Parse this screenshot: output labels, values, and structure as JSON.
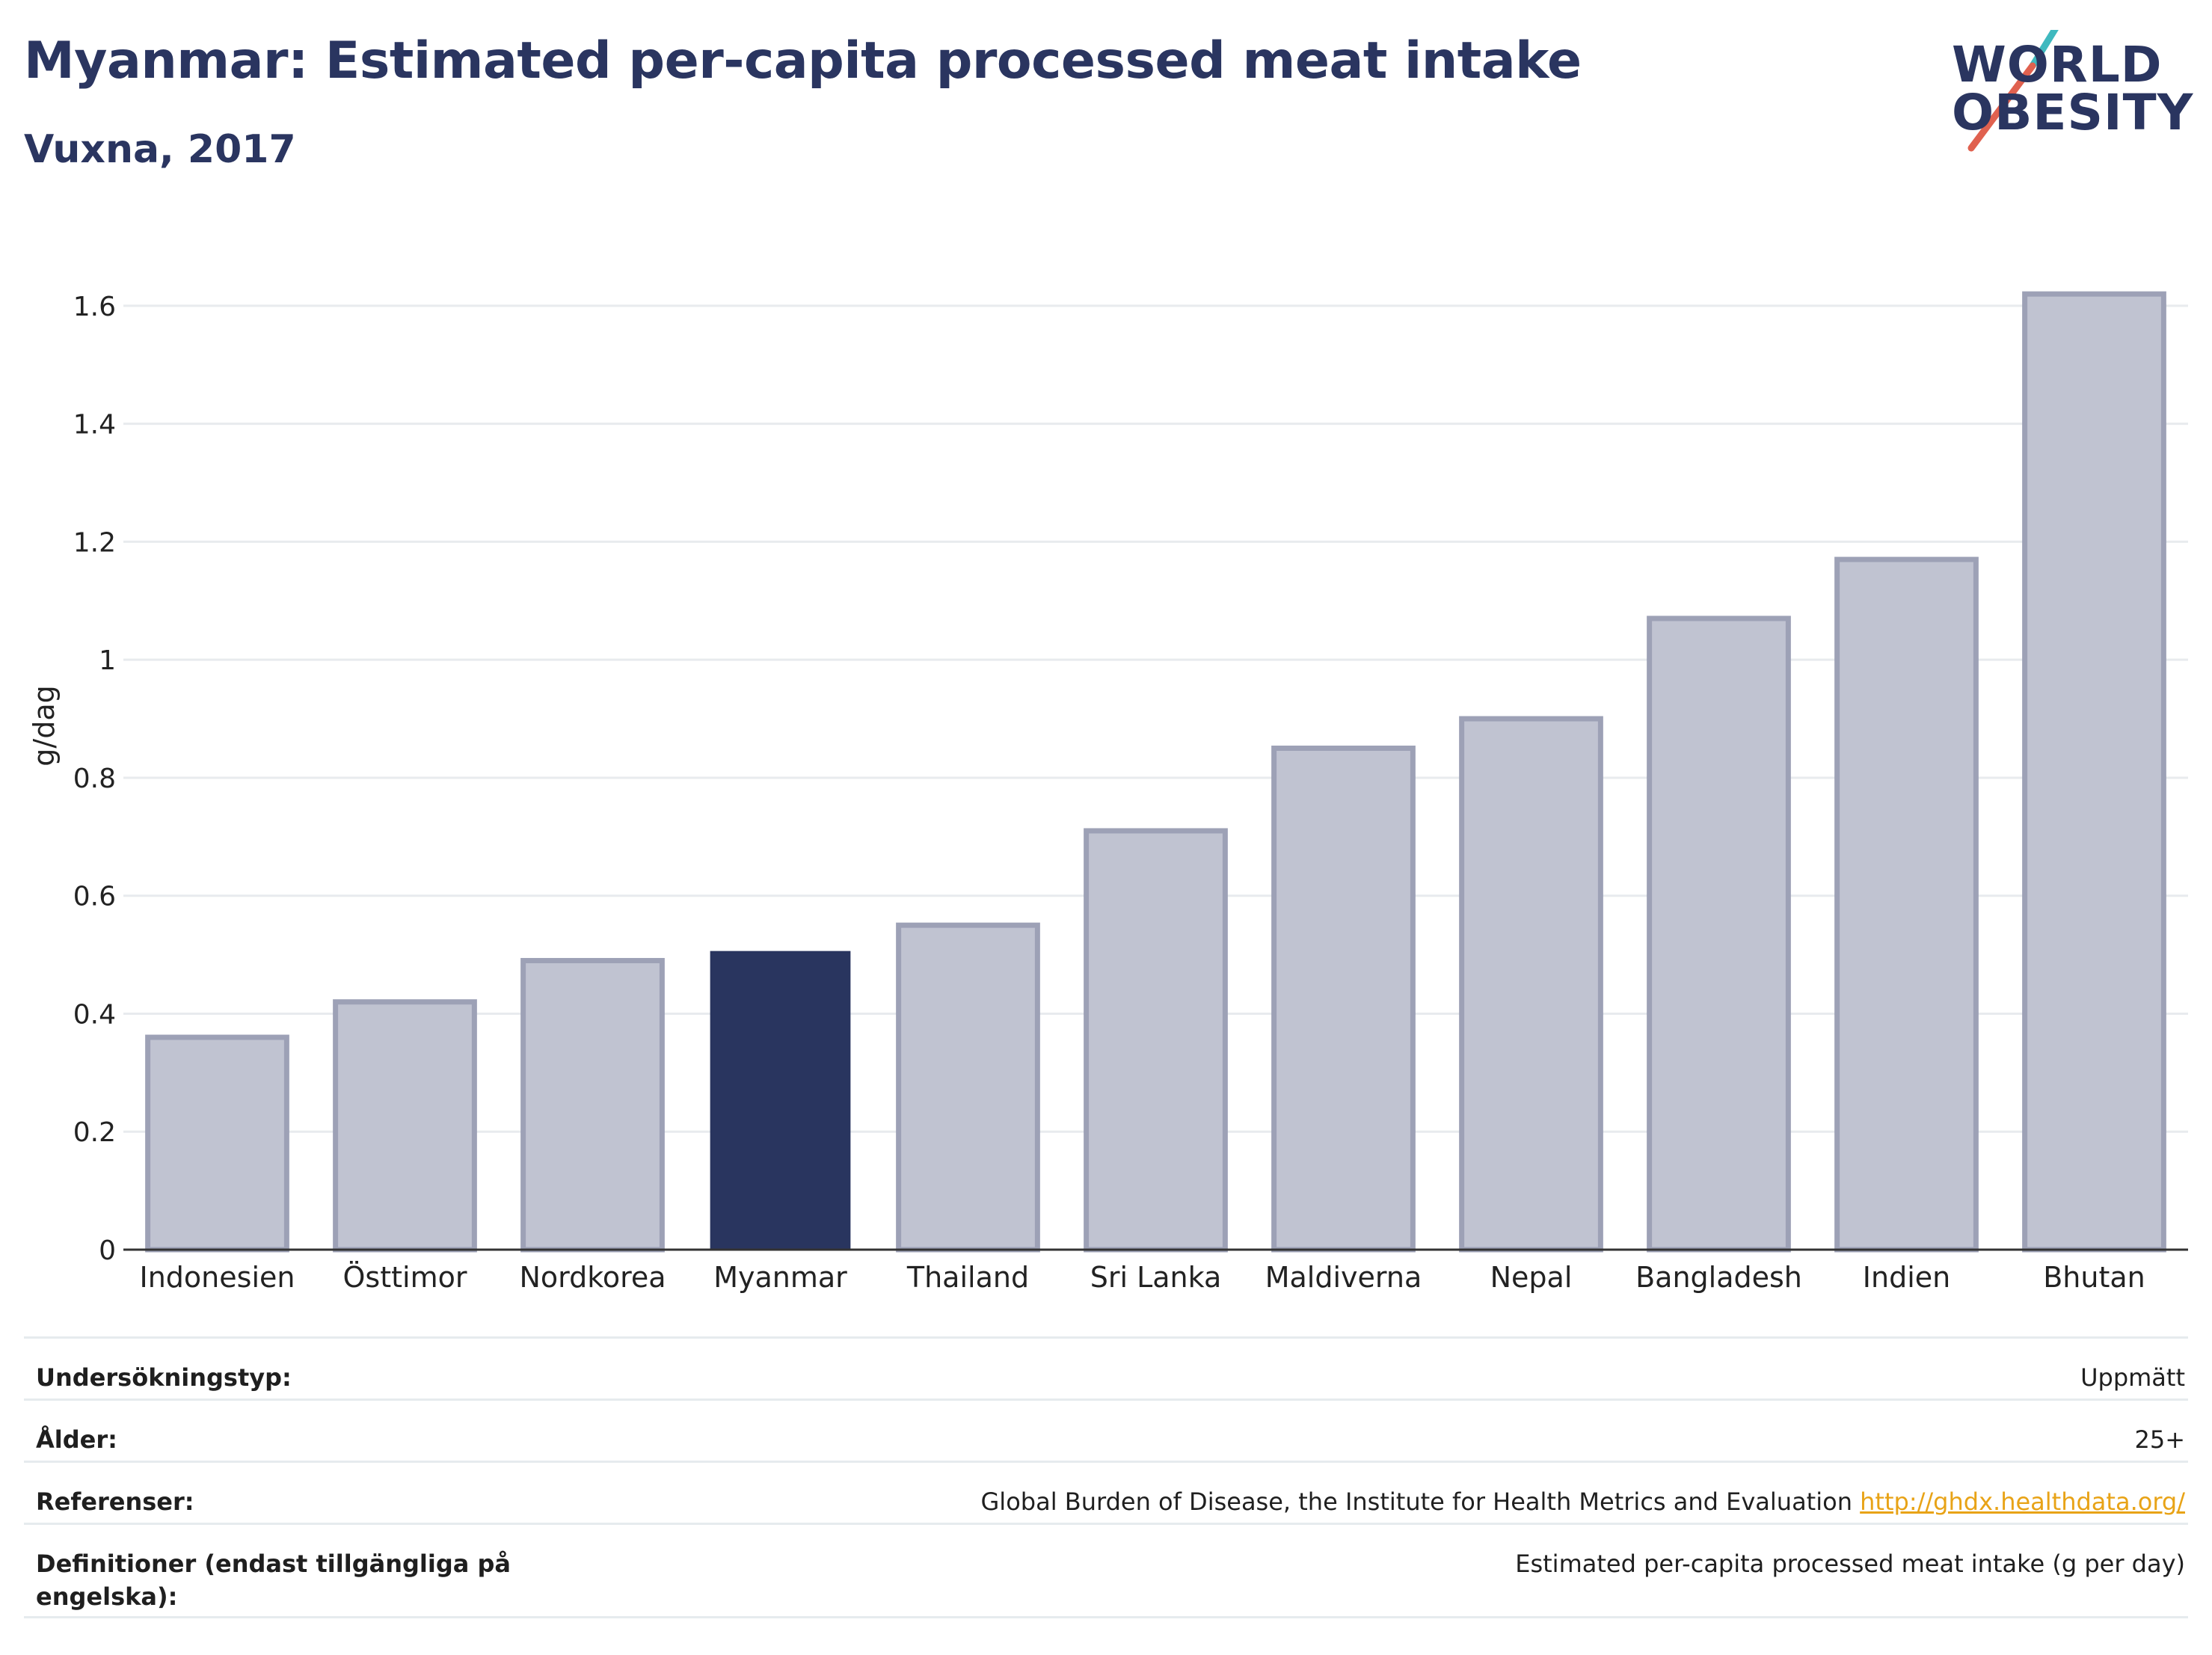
{
  "header": {
    "title": "Myanmar: Estimated per-capita processed meat intake",
    "subtitle": "Vuxna, 2017"
  },
  "logo": {
    "line1": "WORLD",
    "line2": "OBESITY"
  },
  "colors": {
    "highlight": "#29355f",
    "bar": "#c0c3d1",
    "bar_edge": "#9da1b6",
    "brand_navy": "#2a3560",
    "logo_teal": "#3fb9bf",
    "logo_red": "#e0614f",
    "link": "#e8a317"
  },
  "chart_data": {
    "type": "bar",
    "categories": [
      "Indonesien",
      "Östtimor",
      "Nordkorea",
      "Myanmar",
      "Thailand",
      "Sri Lanka",
      "Maldiverna",
      "Nepal",
      "Bangladesh",
      "Indien",
      "Bhutan"
    ],
    "values": [
      0.36,
      0.42,
      0.49,
      0.505,
      0.55,
      0.71,
      0.85,
      0.9,
      1.07,
      1.17,
      1.62
    ],
    "highlight": "Myanmar",
    "ylabel": "g/dag",
    "xlabel": "",
    "ylim": [
      0,
      1.7
    ],
    "yticks": [
      0,
      0.2,
      0.4,
      0.6,
      0.8,
      1,
      1.2,
      1.4,
      1.6
    ],
    "ytick_labels": [
      "0",
      "0.2",
      "0.4",
      "0.6",
      "0.8",
      "1",
      "1.2",
      "1.4",
      "1.6"
    ],
    "grid": true,
    "legend": "none"
  },
  "meta": [
    {
      "key": "Undersökningstyp:",
      "value": "Uppmätt",
      "link": ""
    },
    {
      "key": "Ålder:",
      "value": "25+",
      "link": ""
    },
    {
      "key": "Referenser:",
      "value": "Global Burden of Disease, the Institute for Health Metrics and Evaluation",
      "link": "http://ghdx.healthdata.org/"
    },
    {
      "key": "Definitioner (endast tillgängliga på engelska):",
      "value": "Estimated per-capita processed meat intake (g per day)",
      "link": ""
    }
  ]
}
